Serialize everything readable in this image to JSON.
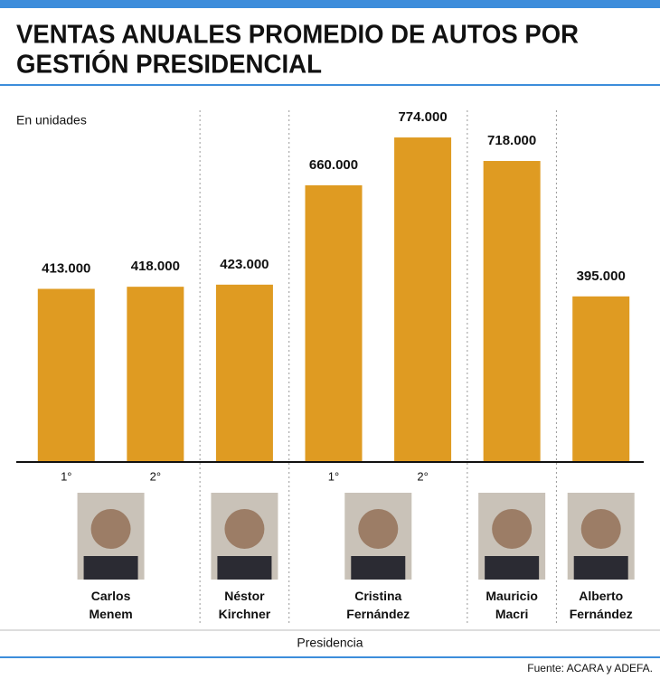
{
  "chart_data": {
    "type": "bar",
    "title": [
      "VENTAS ANUALES PROMEDIO DE AUTOS POR",
      "GESTIÓN PRESIDENCIAL"
    ],
    "subtitle": "En unidades",
    "x_label": "Presidencia",
    "source": "Fuente: ACARA y ADEFA.",
    "categories": [
      "1°",
      "2°",
      null,
      "1°",
      "2°",
      null,
      null
    ],
    "groups": [
      "Carlos Menem",
      "Carlos Menem",
      "Néstor Kirchner",
      "Cristina Fernández",
      "Cristina Fernández",
      "Mauricio Macri",
      "Alberto Fernández"
    ],
    "values": [
      413000,
      418000,
      423000,
      660000,
      774000,
      718000,
      395000
    ],
    "value_labels": [
      "413.000",
      "418.000",
      "423.000",
      "660.000",
      "774.000",
      "718.000",
      "395.000"
    ],
    "color": "#df9b22",
    "ylim": [
      0,
      800000
    ]
  }
}
